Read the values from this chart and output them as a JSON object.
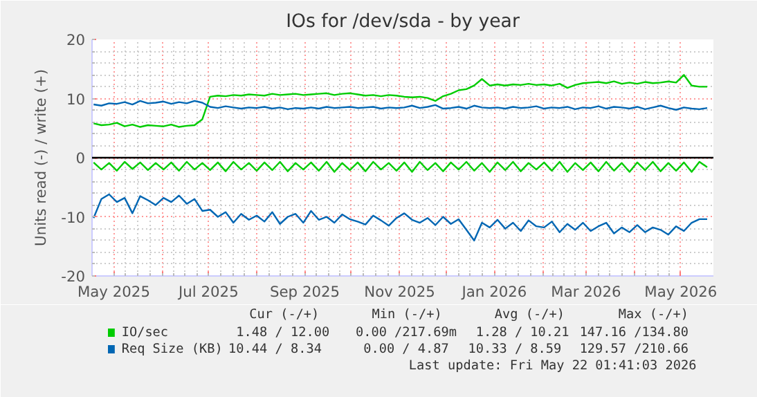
{
  "chart_data": {
    "type": "line",
    "title": "IOs for /dev/sda - by year",
    "ylabel": "Units read (-) / write (+)",
    "x": [
      "2025-04-18",
      "2025-04-23",
      "2025-04-28",
      "2025-05-03",
      "2025-05-08",
      "2025-05-13",
      "2025-05-18",
      "2025-05-23",
      "2025-05-28",
      "2025-06-02",
      "2025-06-07",
      "2025-06-12",
      "2025-06-17",
      "2025-06-22",
      "2025-06-27",
      "2025-07-02",
      "2025-07-07",
      "2025-07-12",
      "2025-07-17",
      "2025-07-22",
      "2025-07-27",
      "2025-08-01",
      "2025-08-06",
      "2025-08-11",
      "2025-08-16",
      "2025-08-21",
      "2025-08-26",
      "2025-08-31",
      "2025-09-05",
      "2025-09-10",
      "2025-09-15",
      "2025-09-20",
      "2025-09-25",
      "2025-09-30",
      "2025-10-05",
      "2025-10-10",
      "2025-10-15",
      "2025-10-20",
      "2025-10-25",
      "2025-10-30",
      "2025-11-04",
      "2025-11-09",
      "2025-11-14",
      "2025-11-19",
      "2025-11-24",
      "2025-11-29",
      "2025-12-04",
      "2025-12-09",
      "2025-12-14",
      "2025-12-19",
      "2025-12-24",
      "2025-12-29",
      "2026-01-03",
      "2026-01-08",
      "2026-01-13",
      "2026-01-18",
      "2026-01-23",
      "2026-01-28",
      "2026-02-02",
      "2026-02-07",
      "2026-02-12",
      "2026-02-17",
      "2026-02-22",
      "2026-02-27",
      "2026-03-04",
      "2026-03-09",
      "2026-03-14",
      "2026-03-19",
      "2026-03-24",
      "2026-03-29",
      "2026-04-03",
      "2026-04-08",
      "2026-04-13",
      "2026-04-18",
      "2026-04-23",
      "2026-04-28",
      "2026-05-03",
      "2026-05-08",
      "2026-05-13",
      "2026-05-18"
    ],
    "series": [
      {
        "name": "IO/sec",
        "color": "#00cc00",
        "values": [
          5.8,
          5.5,
          5.6,
          5.9,
          5.3,
          5.6,
          5.2,
          5.5,
          5.4,
          5.3,
          5.6,
          5.2,
          5.4,
          5.5,
          6.5,
          10.3,
          10.5,
          10.4,
          10.6,
          10.5,
          10.7,
          10.6,
          10.5,
          10.8,
          10.6,
          10.7,
          10.8,
          10.6,
          10.7,
          10.8,
          10.9,
          10.6,
          10.8,
          10.9,
          10.7,
          10.5,
          10.6,
          10.4,
          10.6,
          10.5,
          10.3,
          10.2,
          10.3,
          10.1,
          9.6,
          10.4,
          10.8,
          11.4,
          11.6,
          12.2,
          13.3,
          12.2,
          12.4,
          12.2,
          12.4,
          12.3,
          12.5,
          12.3,
          12.4,
          12.2,
          12.5,
          11.8,
          12.3,
          12.6,
          12.7,
          12.8,
          12.6,
          12.9,
          12.5,
          12.7,
          12.5,
          12.8,
          12.6,
          12.7,
          12.9,
          12.7,
          14.0,
          12.2,
          12.0,
          12.0
        ]
      },
      {
        "color": "#00cc00",
        "values": [
          -0.8,
          -2.0,
          -0.9,
          -2.2,
          -0.7,
          -1.9,
          -0.8,
          -2.1,
          -0.9,
          -2.0,
          -0.8,
          -2.2,
          -0.7,
          -2.0,
          -0.9,
          -2.1,
          -0.8,
          -2.3,
          -0.7,
          -2.0,
          -0.9,
          -2.2,
          -0.8,
          -2.1,
          -0.7,
          -2.3,
          -0.9,
          -2.0,
          -0.8,
          -2.2,
          -0.7,
          -2.4,
          -0.9,
          -2.1,
          -0.8,
          -2.3,
          -0.7,
          -2.0,
          -0.9,
          -2.2,
          -0.8,
          -2.4,
          -0.7,
          -2.1,
          -0.9,
          -2.3,
          -0.8,
          -2.0,
          -0.7,
          -2.2,
          -0.9,
          -2.4,
          -0.8,
          -2.1,
          -0.7,
          -2.3,
          -0.9,
          -2.0,
          -0.8,
          -2.2,
          -0.7,
          -2.4,
          -0.9,
          -2.1,
          -0.8,
          -2.3,
          -0.7,
          -2.2,
          -0.9,
          -2.4,
          -0.8,
          -2.1,
          -0.7,
          -2.3,
          -0.9,
          -2.2,
          -0.8,
          -2.4,
          -0.7,
          -1.6
        ]
      },
      {
        "name": "Req Size (KB)",
        "color": "#0066b3",
        "values": [
          9.0,
          8.8,
          9.2,
          9.1,
          9.4,
          9.0,
          9.6,
          9.2,
          9.3,
          9.5,
          9.1,
          9.4,
          9.2,
          9.6,
          9.3,
          8.6,
          8.4,
          8.7,
          8.5,
          8.3,
          8.5,
          8.4,
          8.6,
          8.3,
          8.5,
          8.2,
          8.4,
          8.3,
          8.5,
          8.3,
          8.6,
          8.4,
          8.5,
          8.6,
          8.4,
          8.5,
          8.6,
          8.3,
          8.5,
          8.4,
          8.5,
          8.8,
          8.4,
          8.6,
          8.9,
          8.3,
          8.4,
          8.6,
          8.3,
          8.8,
          8.5,
          8.4,
          8.5,
          8.3,
          8.6,
          8.4,
          8.5,
          8.7,
          8.3,
          8.5,
          8.4,
          8.6,
          8.2,
          8.5,
          8.4,
          8.7,
          8.3,
          8.6,
          8.5,
          8.3,
          8.6,
          8.2,
          8.5,
          8.8,
          8.4,
          8.1,
          8.5,
          8.3,
          8.2,
          8.4
        ]
      },
      {
        "color": "#0066b3",
        "values": [
          -10.2,
          -7.0,
          -6.2,
          -7.5,
          -6.8,
          -9.4,
          -6.5,
          -7.2,
          -8.0,
          -6.8,
          -7.5,
          -6.4,
          -7.8,
          -7.0,
          -9.0,
          -8.8,
          -10.0,
          -9.2,
          -11.0,
          -9.5,
          -10.5,
          -9.8,
          -10.8,
          -9.2,
          -11.2,
          -10.0,
          -9.5,
          -11.0,
          -9.0,
          -10.5,
          -10.0,
          -11.0,
          -9.6,
          -10.4,
          -10.8,
          -11.3,
          -9.8,
          -10.6,
          -11.5,
          -10.2,
          -9.4,
          -10.5,
          -11.0,
          -10.2,
          -11.4,
          -10.0,
          -11.2,
          -10.4,
          -12.2,
          -14.0,
          -11.0,
          -11.8,
          -10.5,
          -12.0,
          -11.0,
          -12.4,
          -10.6,
          -11.6,
          -11.8,
          -10.8,
          -12.6,
          -11.2,
          -12.2,
          -11.0,
          -12.4,
          -11.6,
          -11.0,
          -12.8,
          -11.8,
          -12.6,
          -11.4,
          -12.6,
          -11.8,
          -12.2,
          -13.0,
          -11.6,
          -12.4,
          -11.0,
          -10.4,
          -10.4
        ]
      }
    ],
    "xlim": [
      "2025-04-17",
      "2026-05-22"
    ],
    "xticks": [
      {
        "value": "2025-05-01",
        "label": "May 2025"
      },
      {
        "value": "2025-06-01",
        "label": null
      },
      {
        "value": "2025-07-01",
        "label": "Jul 2025"
      },
      {
        "value": "2025-08-01",
        "label": null
      },
      {
        "value": "2025-09-01",
        "label": "Sep 2025"
      },
      {
        "value": "2025-10-01",
        "label": null
      },
      {
        "value": "2025-11-01",
        "label": "Nov 2025"
      },
      {
        "value": "2025-12-01",
        "label": null
      },
      {
        "value": "2026-01-01",
        "label": "Jan 2026"
      },
      {
        "value": "2026-02-01",
        "label": null
      },
      {
        "value": "2026-03-01",
        "label": "Mar 2026"
      },
      {
        "value": "2026-04-01",
        "label": null
      },
      {
        "value": "2026-05-01",
        "label": "May 2026"
      }
    ],
    "ylim": [
      -20,
      20
    ],
    "yticks": [
      -20,
      -10,
      0,
      10,
      20
    ],
    "grid": true,
    "legend": "bottom",
    "line_style": "solid",
    "ref_lines": [
      {
        "axis": "y",
        "value": 0,
        "color": "#000000"
      }
    ],
    "annotations": [
      "Cur (-/+)",
      "Min (-/+)",
      "Avg (-/+)",
      "Max (-/+)",
      "1.48 / 12.00",
      "0.00 /217.69m",
      "1.28 / 10.21",
      "147.16 /134.80",
      "10.44 /  8.34",
      "0.00 /  4.87",
      "10.33 /  8.59",
      "129.57 /210.66",
      "Last update: Fri May 22 01:41:03 2026"
    ]
  }
}
